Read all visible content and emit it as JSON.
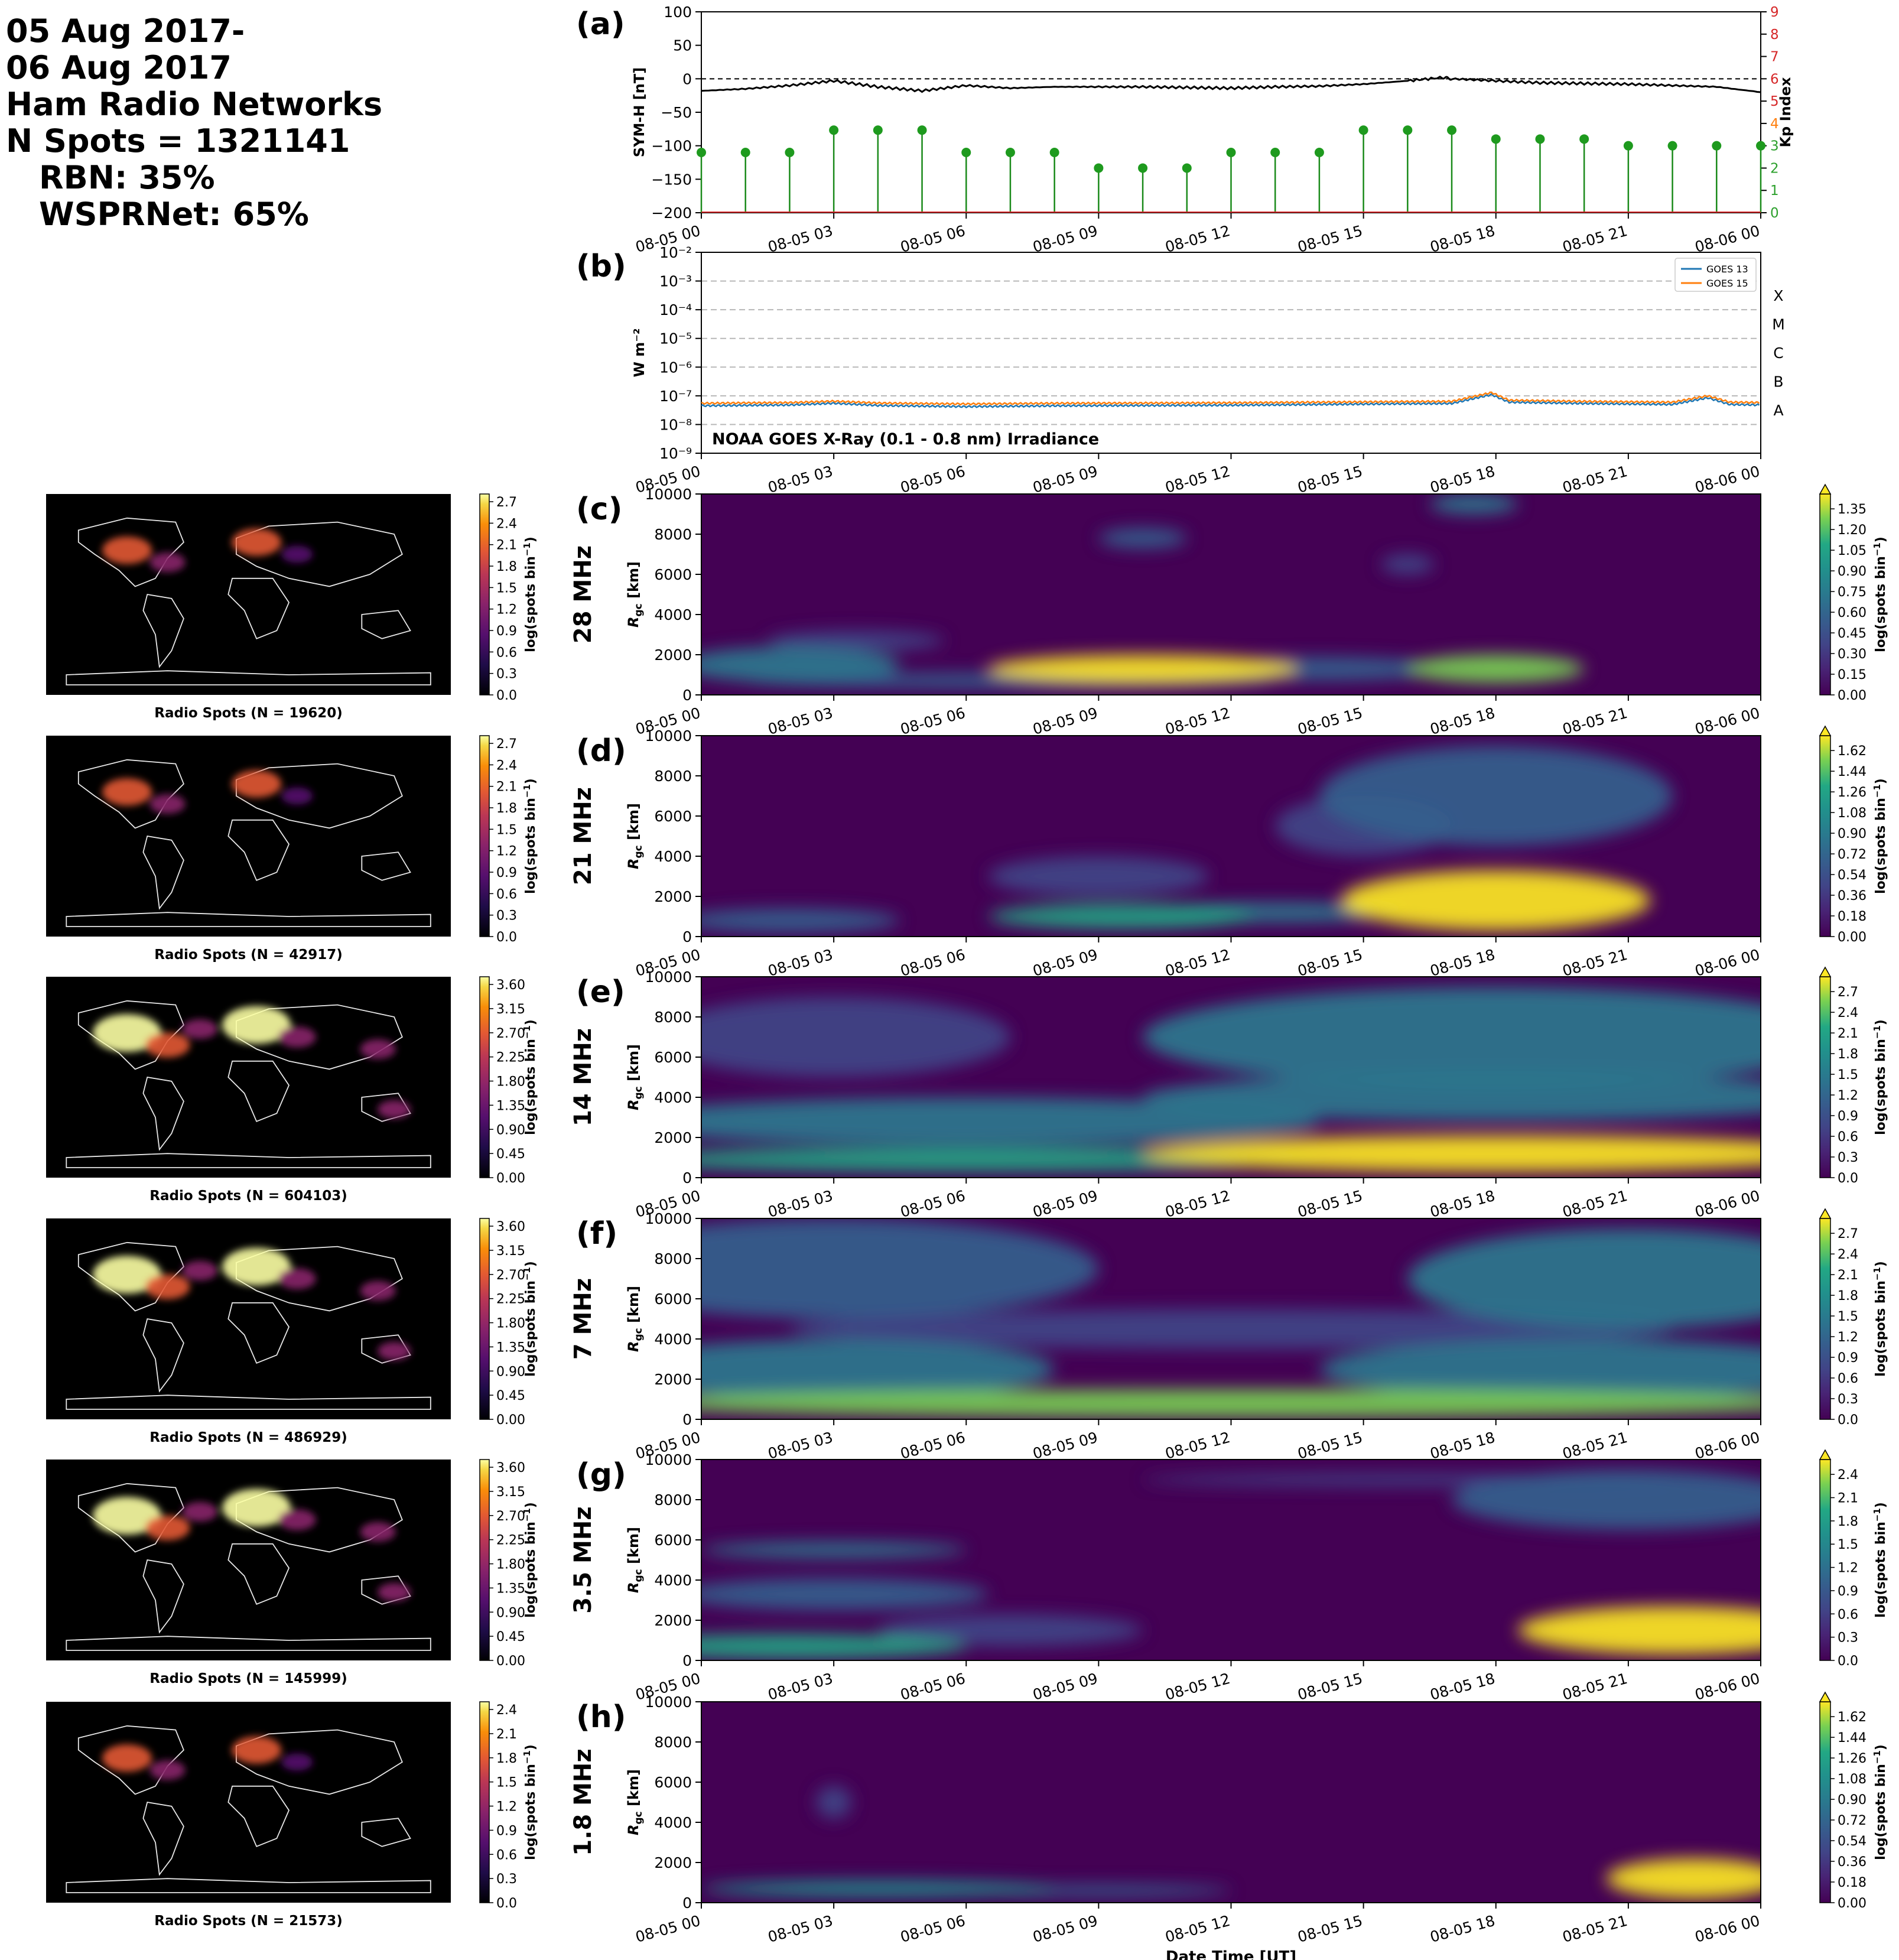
{
  "header": {
    "line1": "05 Aug 2017-",
    "line2": "06 Aug 2017",
    "line3": "Ham Radio Networks",
    "line4": "N Spots = 1321141",
    "line5": "RBN: 35%",
    "line6": "WSPRNet: 65%"
  },
  "time_ticks": [
    "08-05 00",
    "08-05 03",
    "08-05 06",
    "08-05 09",
    "08-05 12",
    "08-05 15",
    "08-05 18",
    "08-05 21",
    "08-06 00"
  ],
  "time_axis_label": "Date Time [UT]",
  "colors": {
    "symh_line": "#000000",
    "kp_stem": "#1a8a1a",
    "kp_marker": "#1e9a1e",
    "goes13": "#1f77b4",
    "goes15": "#ff7f0e",
    "kp_axis_red": "#d62728",
    "kp_axis_green": "#2ca02c",
    "kp_axis_orange": "#ff7f0e"
  },
  "chart_data": [
    {
      "id": "a",
      "type": "line",
      "panel_label": "(a)",
      "ylabel": "SYM-H [nT]",
      "ylim": [
        -200,
        100
      ],
      "yticks": [
        "100",
        "50",
        "0",
        "−50",
        "−100",
        "−150",
        "−200"
      ],
      "zero_line": "dashed",
      "series": [
        {
          "name": "",
          "x_hours": [
            0,
            1,
            2,
            3,
            4,
            5,
            6,
            7,
            8,
            9,
            10,
            11,
            12,
            13,
            14,
            15,
            16,
            16.8,
            17,
            18,
            19,
            20,
            21,
            22,
            23,
            24
          ],
          "values": [
            -18,
            -15,
            -10,
            -3,
            -12,
            -18,
            -10,
            -14,
            -12,
            -12,
            -12,
            -13,
            -14,
            -12,
            -11,
            -8,
            -3,
            2,
            0,
            -3,
            -6,
            -7,
            -8,
            -10,
            -12,
            -20
          ]
        }
      ],
      "y2label": "Kp Index",
      "y2lim": [
        0,
        9
      ],
      "y2ticks": [
        "0",
        "1",
        "2",
        "3",
        "4",
        "5",
        "6",
        "7",
        "8",
        "9"
      ],
      "kp": {
        "x_hours": [
          0,
          1,
          2,
          3,
          4,
          5,
          6,
          7,
          8,
          9,
          10,
          11,
          12,
          13,
          14,
          15,
          16,
          17,
          18,
          19,
          20,
          21,
          22,
          23,
          24
        ],
        "values": [
          2.7,
          2.7,
          2.7,
          3.7,
          3.7,
          3.7,
          2.7,
          2.7,
          2.7,
          2,
          2,
          2,
          2.7,
          2.7,
          2.7,
          3.7,
          3.7,
          3.7,
          3.3,
          3.3,
          3.3,
          3,
          3,
          3,
          3
        ]
      }
    },
    {
      "id": "b",
      "type": "line",
      "panel_label": "(b)",
      "ylabel": "W m⁻²",
      "yscale": "log",
      "ylim": [
        1e-09,
        0.01
      ],
      "yticks": [
        "10⁻⁹",
        "10⁻⁸",
        "10⁻⁷",
        "10⁻⁶",
        "10⁻⁵",
        "10⁻⁴",
        "10⁻³",
        "10⁻²"
      ],
      "flare_classes": [
        "A",
        "B",
        "C",
        "M",
        "X"
      ],
      "annotation": "NOAA GOES X-Ray (0.1 - 0.8 nm) Irradiance",
      "legend": "top-right",
      "series": [
        {
          "name": "GOES 13",
          "x_hours": [
            0,
            2,
            3,
            4,
            6,
            8,
            10,
            12,
            14,
            16,
            17,
            17.9,
            18.3,
            20,
            22,
            22.8,
            23.3,
            24
          ],
          "values": [
            4.5e-08,
            4.8e-08,
            5.5e-08,
            4.6e-08,
            4.2e-08,
            4.5e-08,
            4.6e-08,
            4.7e-08,
            5e-08,
            5.3e-08,
            5.4e-08,
            1.1e-07,
            6e-08,
            5.4e-08,
            5e-08,
            8.5e-08,
            5e-08,
            4.8e-08
          ]
        },
        {
          "name": "GOES 15",
          "x_hours": [
            0,
            2,
            3,
            4,
            6,
            8,
            10,
            12,
            14,
            16,
            17,
            17.9,
            18.3,
            20,
            22,
            22.8,
            23.3,
            24
          ],
          "values": [
            5.5e-08,
            5.8e-08,
            6.5e-08,
            5.6e-08,
            5.2e-08,
            5.5e-08,
            5.6e-08,
            5.7e-08,
            6e-08,
            6.3e-08,
            6.4e-08,
            1.3e-07,
            7e-08,
            6.4e-08,
            6e-08,
            1e-07,
            6e-08,
            5.8e-08
          ]
        }
      ]
    }
  ],
  "bands": [
    {
      "id": "c",
      "label": "(c)",
      "band": "28 MHz",
      "n_spots": "Radio Spots (N = 19620)",
      "map_cbar_ticks": [
        "0.0",
        "0.3",
        "0.6",
        "0.9",
        "1.2",
        "1.5",
        "1.8",
        "2.1",
        "2.4",
        "2.7"
      ],
      "rti_cbar_ticks": [
        "0.00",
        "0.15",
        "0.30",
        "0.45",
        "0.60",
        "0.75",
        "0.90",
        "1.05",
        "1.20",
        "1.35"
      ],
      "blobs": [
        [
          10,
          1300,
          3.5,
          700,
          1.0
        ],
        [
          18,
          1300,
          2,
          700,
          0.9
        ],
        [
          2,
          1500,
          2.5,
          900,
          0.55
        ],
        [
          3.5,
          2700,
          2,
          500,
          0.3
        ],
        [
          7,
          700,
          6,
          400,
          0.35
        ],
        [
          14,
          1300,
          3,
          600,
          0.35
        ],
        [
          17.5,
          9500,
          1,
          500,
          0.5
        ],
        [
          16,
          6500,
          0.6,
          500,
          0.3
        ],
        [
          10,
          7800,
          1,
          500,
          0.35
        ]
      ]
    },
    {
      "id": "d",
      "label": "(d)",
      "band": "21 MHz",
      "n_spots": "Radio Spots (N = 42917)",
      "map_cbar_ticks": [
        "0.0",
        "0.3",
        "0.6",
        "0.9",
        "1.2",
        "1.5",
        "1.8",
        "2.1",
        "2.4",
        "2.7"
      ],
      "rti_cbar_ticks": [
        "0.00",
        "0.18",
        "0.36",
        "0.54",
        "0.72",
        "0.90",
        "1.08",
        "1.26",
        "1.44",
        "1.62"
      ],
      "blobs": [
        [
          18,
          1800,
          3.5,
          1500,
          1.0
        ],
        [
          9.5,
          1000,
          3,
          600,
          0.75
        ],
        [
          13,
          1200,
          3,
          500,
          0.55
        ],
        [
          2,
          800,
          2.5,
          600,
          0.35
        ],
        [
          18,
          7000,
          4,
          2500,
          0.4
        ],
        [
          15,
          5500,
          2,
          1500,
          0.3
        ],
        [
          9,
          3000,
          2.5,
          1000,
          0.3
        ]
      ]
    },
    {
      "id": "e",
      "label": "(e)",
      "band": "14 MHz",
      "n_spots": "Radio Spots (N = 604103)",
      "map_cbar_ticks": [
        "0.00",
        "0.45",
        "0.90",
        "1.35",
        "1.80",
        "2.25",
        "2.70",
        "3.15",
        "3.60"
      ],
      "rti_cbar_ticks": [
        "0.0",
        "0.3",
        "0.6",
        "0.9",
        "1.2",
        "1.5",
        "1.8",
        "2.1",
        "2.4",
        "2.7"
      ],
      "blobs": [
        [
          6,
          900,
          8,
          600,
          0.8
        ],
        [
          18,
          1200,
          8,
          900,
          0.95
        ],
        [
          6,
          2800,
          8,
          1200,
          0.45
        ],
        [
          18,
          7000,
          8,
          2500,
          0.55
        ],
        [
          18,
          4000,
          8,
          1200,
          0.45
        ],
        [
          3,
          7000,
          4,
          2000,
          0.22
        ]
      ]
    },
    {
      "id": "f",
      "label": "(f)",
      "band": "7 MHz",
      "n_spots": "Radio Spots (N = 486929)",
      "map_cbar_ticks": [
        "0.00",
        "0.45",
        "0.90",
        "1.35",
        "1.80",
        "2.25",
        "2.70",
        "3.15",
        "3.60"
      ],
      "rti_cbar_ticks": [
        "0.0",
        "0.3",
        "0.6",
        "0.9",
        "1.2",
        "1.5",
        "1.8",
        "2.1",
        "2.4",
        "2.7"
      ],
      "blobs": [
        [
          12,
          800,
          14,
          700,
          0.9
        ],
        [
          3,
          2500,
          5,
          1500,
          0.5
        ],
        [
          20,
          2500,
          6,
          1500,
          0.5
        ],
        [
          3,
          7500,
          6,
          2500,
          0.35
        ],
        [
          21,
          7000,
          5,
          2500,
          0.45
        ],
        [
          12,
          4500,
          10,
          1000,
          0.25
        ]
      ]
    },
    {
      "id": "g",
      "label": "(g)",
      "band": "3.5 MHz",
      "n_spots": "Radio Spots (N = 145999)",
      "map_cbar_ticks": [
        "0.00",
        "0.45",
        "0.90",
        "1.35",
        "1.80",
        "2.25",
        "2.70",
        "3.15",
        "3.60"
      ],
      "rti_cbar_ticks": [
        "0.0",
        "0.3",
        "0.6",
        "0.9",
        "1.2",
        "1.5",
        "1.8",
        "2.1",
        "2.4"
      ],
      "blobs": [
        [
          2,
          700,
          4,
          600,
          0.7
        ],
        [
          3,
          5500,
          3,
          400,
          0.55
        ],
        [
          3,
          3300,
          3.5,
          800,
          0.35
        ],
        [
          22,
          1500,
          3.5,
          1200,
          1.0
        ],
        [
          21,
          8000,
          4,
          1500,
          0.35
        ],
        [
          16,
          9000,
          6,
          300,
          0.25
        ],
        [
          7,
          1500,
          3,
          800,
          0.3
        ]
      ]
    },
    {
      "id": "h",
      "label": "(h)",
      "band": "1.8 MHz",
      "n_spots": "Radio Spots (N = 21573)",
      "map_cbar_ticks": [
        "0.0",
        "0.3",
        "0.6",
        "0.9",
        "1.2",
        "1.5",
        "1.8",
        "2.1",
        "2.4"
      ],
      "rti_cbar_ticks": [
        "0.00",
        "0.18",
        "0.36",
        "0.54",
        "0.72",
        "0.90",
        "1.08",
        "1.26",
        "1.44",
        "1.62"
      ],
      "blobs": [
        [
          22.5,
          1200,
          2,
          1000,
          1.0
        ],
        [
          4,
          700,
          4,
          400,
          0.6
        ],
        [
          9,
          600,
          3,
          300,
          0.35
        ],
        [
          3,
          5000,
          0.4,
          800,
          0.3
        ]
      ]
    }
  ],
  "rti_ylabel": "R",
  "rti_ylabel_sub": "gc",
  "rti_ylabel_unit": " [km]",
  "rti_ylim": [
    0,
    10000
  ],
  "rti_yticks": [
    "0",
    "2000",
    "4000",
    "6000",
    "8000",
    "10000"
  ],
  "cbar_label": "log(spots bin",
  "cbar_label_sup": "−1",
  "cbar_label_end": ")"
}
